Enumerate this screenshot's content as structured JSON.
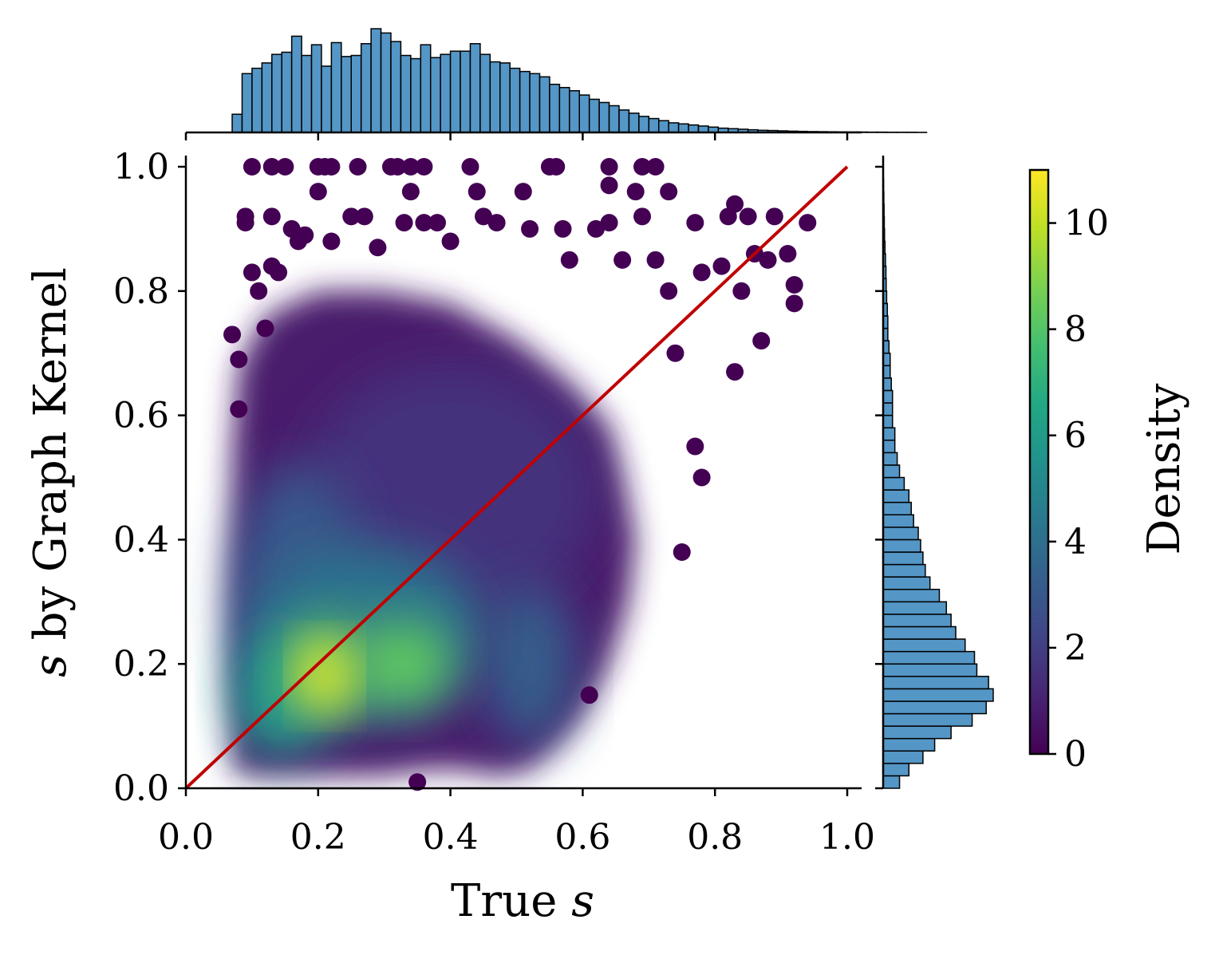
{
  "chart_data": {
    "type": "scatter",
    "subtype": "density-colored scatter with marginal histograms and identity line",
    "xlabel": {
      "text": "True ",
      "var": "s"
    },
    "ylabel": {
      "var": "s",
      "text": " by Graph Kernel"
    },
    "xlim": [
      0.0,
      1.0
    ],
    "ylim": [
      0.0,
      1.0
    ],
    "x_ticks": [
      "0.0",
      "0.2",
      "0.4",
      "0.6",
      "0.8",
      "1.0"
    ],
    "y_ticks": [
      "0.0",
      "0.2",
      "0.4",
      "0.6",
      "0.8",
      "1.0"
    ],
    "grid": false,
    "colormap": "viridis",
    "colorbar": {
      "label": "Density",
      "range": [
        0,
        11
      ],
      "ticks": [
        "0",
        "2",
        "4",
        "6",
        "8",
        "10"
      ]
    },
    "reference_line": {
      "from": [
        0.0,
        0.0
      ],
      "to": [
        1.0,
        1.0
      ],
      "color": "#c00000"
    },
    "density_clusters": [
      {
        "x": 0.21,
        "y": 0.19,
        "peak_density": 11.0
      },
      {
        "x": 0.33,
        "y": 0.2,
        "peak_density": 8.3
      },
      {
        "x": 0.14,
        "y": 0.14,
        "peak_density": 6.0
      },
      {
        "x": 0.5,
        "y": 0.18,
        "peak_density": 3.2
      },
      {
        "x": 0.4,
        "y": 0.5,
        "peak_density": 1.9
      }
    ],
    "outlier_points": [
      [
        0.1,
        1.0
      ],
      [
        0.13,
        1.0
      ],
      [
        0.15,
        1.0
      ],
      [
        0.2,
        1.0
      ],
      [
        0.21,
        1.0
      ],
      [
        0.22,
        1.0
      ],
      [
        0.26,
        1.0
      ],
      [
        0.31,
        1.0
      ],
      [
        0.32,
        1.0
      ],
      [
        0.34,
        1.0
      ],
      [
        0.36,
        1.0
      ],
      [
        0.43,
        1.0
      ],
      [
        0.55,
        1.0
      ],
      [
        0.56,
        1.0
      ],
      [
        0.64,
        1.0
      ],
      [
        0.69,
        1.0
      ],
      [
        0.71,
        1.0
      ],
      [
        0.2,
        0.96
      ],
      [
        0.34,
        0.96
      ],
      [
        0.44,
        0.96
      ],
      [
        0.51,
        0.96
      ],
      [
        0.64,
        0.97
      ],
      [
        0.68,
        0.96
      ],
      [
        0.73,
        0.96
      ],
      [
        0.09,
        0.92
      ],
      [
        0.09,
        0.91
      ],
      [
        0.13,
        0.92
      ],
      [
        0.16,
        0.9
      ],
      [
        0.18,
        0.89
      ],
      [
        0.25,
        0.92
      ],
      [
        0.27,
        0.92
      ],
      [
        0.33,
        0.91
      ],
      [
        0.36,
        0.91
      ],
      [
        0.38,
        0.91
      ],
      [
        0.45,
        0.92
      ],
      [
        0.47,
        0.91
      ],
      [
        0.52,
        0.9
      ],
      [
        0.57,
        0.9
      ],
      [
        0.62,
        0.9
      ],
      [
        0.64,
        0.91
      ],
      [
        0.69,
        0.92
      ],
      [
        0.77,
        0.91
      ],
      [
        0.82,
        0.92
      ],
      [
        0.83,
        0.94
      ],
      [
        0.85,
        0.92
      ],
      [
        0.89,
        0.92
      ],
      [
        0.94,
        0.91
      ],
      [
        0.92,
        0.81
      ],
      [
        0.92,
        0.78
      ],
      [
        0.87,
        0.72
      ],
      [
        0.75,
        0.38
      ],
      [
        0.61,
        0.15
      ],
      [
        0.35,
        0.01
      ],
      [
        0.78,
        0.5
      ],
      [
        0.83,
        0.67
      ],
      [
        0.84,
        0.8
      ],
      [
        0.74,
        0.7
      ],
      [
        0.77,
        0.55
      ],
      [
        0.13,
        0.84
      ],
      [
        0.14,
        0.83
      ],
      [
        0.1,
        0.83
      ],
      [
        0.11,
        0.8
      ],
      [
        0.12,
        0.74
      ],
      [
        0.07,
        0.73
      ],
      [
        0.08,
        0.69
      ],
      [
        0.08,
        0.61
      ],
      [
        0.17,
        0.88
      ],
      [
        0.22,
        0.88
      ],
      [
        0.29,
        0.87
      ],
      [
        0.4,
        0.88
      ],
      [
        0.58,
        0.85
      ],
      [
        0.66,
        0.85
      ],
      [
        0.71,
        0.85
      ],
      [
        0.73,
        0.8
      ],
      [
        0.78,
        0.83
      ],
      [
        0.81,
        0.84
      ],
      [
        0.86,
        0.86
      ],
      [
        0.88,
        0.85
      ],
      [
        0.91,
        0.86
      ]
    ],
    "marginal_x_hist": {
      "bin_start": 0.07,
      "bin_width": 0.015,
      "values": [
        0.17,
        0.55,
        0.6,
        0.65,
        0.73,
        0.75,
        0.9,
        0.72,
        0.82,
        0.62,
        0.84,
        0.71,
        0.72,
        0.83,
        0.97,
        0.93,
        0.85,
        0.72,
        0.69,
        0.82,
        0.7,
        0.73,
        0.76,
        0.76,
        0.83,
        0.73,
        0.66,
        0.65,
        0.6,
        0.57,
        0.55,
        0.52,
        0.45,
        0.42,
        0.39,
        0.35,
        0.31,
        0.28,
        0.25,
        0.21,
        0.18,
        0.15,
        0.13,
        0.11,
        0.09,
        0.08,
        0.07,
        0.06,
        0.05,
        0.04,
        0.035,
        0.03,
        0.025,
        0.02,
        0.018,
        0.015,
        0.012,
        0.01,
        0.008,
        0.007,
        0.006,
        0.005,
        0.004,
        0.004,
        0.003,
        0.003,
        0.002,
        0.002,
        0.002,
        0.001
      ]
    },
    "marginal_y_hist": {
      "bin_start": 0.0,
      "bin_width": 0.02,
      "values": [
        0.07,
        0.11,
        0.17,
        0.22,
        0.29,
        0.38,
        0.44,
        0.47,
        0.45,
        0.4,
        0.39,
        0.35,
        0.31,
        0.29,
        0.27,
        0.24,
        0.2,
        0.18,
        0.17,
        0.16,
        0.15,
        0.13,
        0.12,
        0.11,
        0.09,
        0.07,
        0.06,
        0.05,
        0.05,
        0.04,
        0.04,
        0.04,
        0.035,
        0.03,
        0.03,
        0.025,
        0.02,
        0.02,
        0.018,
        0.015,
        0.013,
        0.012,
        0.01,
        0.008,
        0.006,
        0.005,
        0.004,
        0.003,
        0.002,
        0.001
      ]
    }
  }
}
